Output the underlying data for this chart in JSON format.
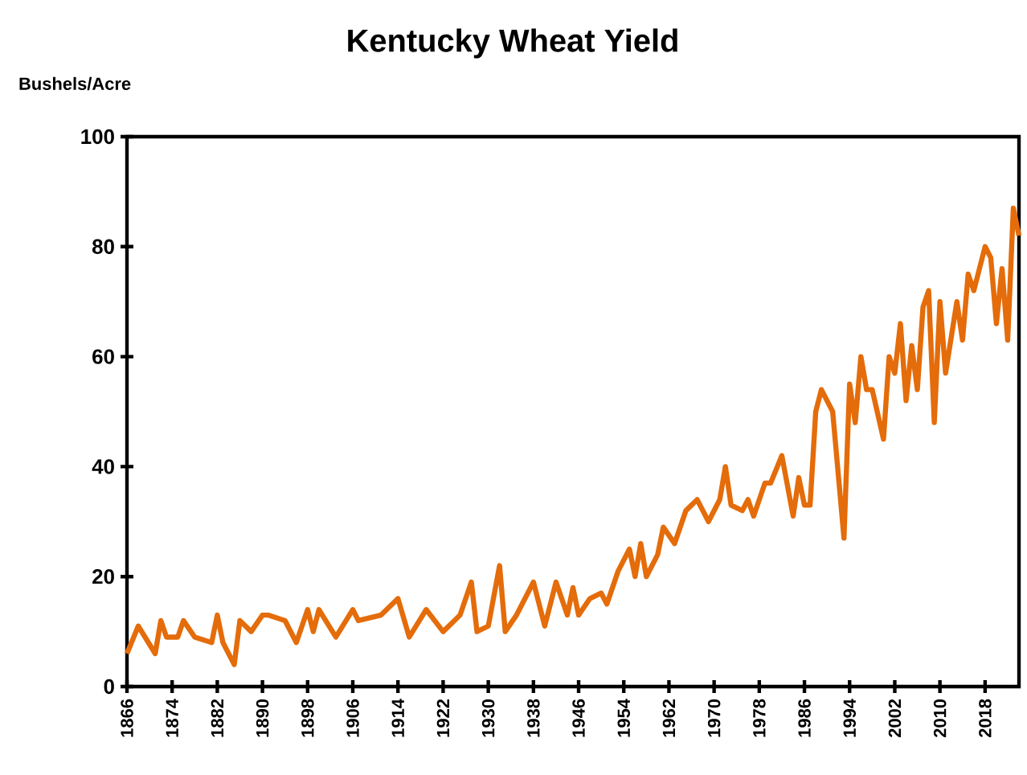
{
  "chart_data": {
    "type": "line",
    "title": "Kentucky Wheat Yield",
    "ylabel": "Bushels/Acre",
    "x": [
      1866,
      1868,
      1871,
      1872,
      1873,
      1875,
      1876,
      1878,
      1881,
      1882,
      1883,
      1885,
      1886,
      1888,
      1890,
      1891,
      1894,
      1896,
      1898,
      1899,
      1900,
      1903,
      1906,
      1907,
      1911,
      1914,
      1916,
      1919,
      1922,
      1924,
      1925,
      1927,
      1928,
      1930,
      1932,
      1933,
      1935,
      1938,
      1940,
      1942,
      1944,
      1945,
      1946,
      1948,
      1950,
      1951,
      1953,
      1955,
      1956,
      1957,
      1958,
      1960,
      1961,
      1963,
      1965,
      1967,
      1969,
      1971,
      1972,
      1973,
      1975,
      1976,
      1977,
      1979,
      1980,
      1982,
      1984,
      1985,
      1986,
      1987,
      1988,
      1989,
      1991,
      1993,
      1994,
      1995,
      1996,
      1997,
      1998,
      2000,
      2001,
      2002,
      2003,
      2004,
      2005,
      2006,
      2007,
      2008,
      2009,
      2010,
      2011,
      2013,
      2014,
      2015,
      2016,
      2018,
      2019,
      2020,
      2021,
      2022,
      2023,
      2024
    ],
    "series": [
      {
        "color": "#e46c0a",
        "values": [
          6,
          11,
          6,
          12,
          9,
          9,
          12,
          9,
          8,
          13,
          8,
          4,
          12,
          10,
          13,
          13,
          12,
          8,
          14,
          10,
          14,
          9,
          14,
          12,
          13,
          16,
          9,
          14,
          10,
          12,
          13,
          19,
          10,
          11,
          22,
          10,
          13,
          19,
          11,
          19,
          13,
          18,
          13,
          16,
          17,
          15,
          21,
          25,
          20,
          26,
          20,
          24,
          29,
          26,
          32,
          34,
          30,
          34,
          40,
          33,
          32,
          34,
          31,
          37,
          37,
          42,
          31,
          38,
          33,
          33,
          50,
          54,
          50,
          27,
          55,
          48,
          60,
          54,
          54,
          45,
          60,
          57,
          66,
          52,
          62,
          54,
          69,
          72,
          48,
          70,
          57,
          70,
          63,
          75,
          72,
          80,
          78,
          66,
          76,
          63,
          87,
          82
        ]
      }
    ],
    "xlim": [
      1866,
      2024
    ],
    "xticks": [
      1866,
      1874,
      1882,
      1890,
      1898,
      1906,
      1914,
      1922,
      1930,
      1938,
      1946,
      1954,
      1962,
      1970,
      1978,
      1986,
      1994,
      2002,
      2010,
      2018
    ],
    "ylim": [
      0,
      100
    ],
    "yticks": [
      0,
      20,
      40,
      60,
      80,
      100
    ]
  }
}
